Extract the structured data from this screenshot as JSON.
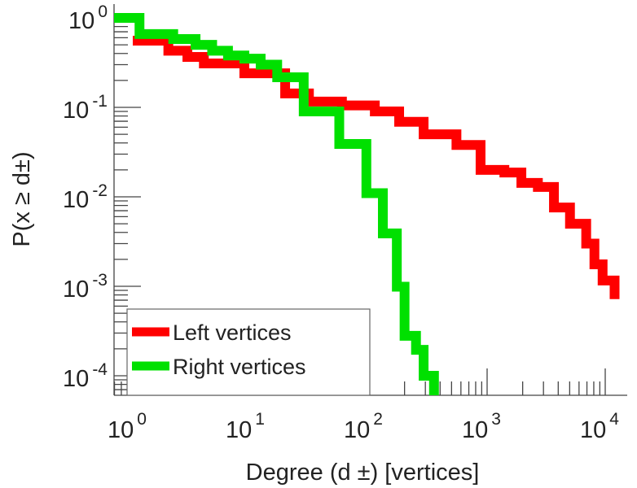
{
  "chart_data": {
    "type": "line",
    "title": "",
    "xlabel": "Degree (d ±) [vertices]",
    "ylabel": "P(x ≥ d±)",
    "xscale": "log",
    "yscale": "log",
    "xlim": [
      0.69,
      14000
    ],
    "ylim": [
      6e-05,
      1.4
    ],
    "xticks": [
      {
        "base": "10",
        "exp": "0"
      },
      {
        "base": "10",
        "exp": "1"
      },
      {
        "base": "10",
        "exp": "2"
      },
      {
        "base": "10",
        "exp": "3"
      },
      {
        "base": "10",
        "exp": "4"
      }
    ],
    "yticks": [
      {
        "base": "10",
        "exp": "0"
      },
      {
        "base": "10",
        "exp": "-1"
      },
      {
        "base": "10",
        "exp": "-2"
      },
      {
        "base": "10",
        "exp": "-3"
      },
      {
        "base": "10",
        "exp": "-4"
      }
    ],
    "grid": false,
    "legend_position": "bottom-left",
    "series": [
      {
        "name": "Left vertices",
        "color": "#ff0000",
        "x": [
          1,
          2,
          2.9,
          4,
          8.8,
          19.5,
          31,
          59,
          112,
          180,
          290,
          550,
          880,
          1400,
          1950,
          2690,
          3680,
          5030,
          6900,
          8100,
          9500,
          12000
        ],
        "y": [
          0.556,
          0.43,
          0.366,
          0.31,
          0.24,
          0.143,
          0.116,
          0.105,
          0.09,
          0.069,
          0.05,
          0.038,
          0.02,
          0.0187,
          0.0143,
          0.0129,
          0.0076,
          0.005,
          0.003,
          0.00176,
          0.00116,
          0.00085
        ]
      },
      {
        "name": "Right vertices",
        "color": "#00e000",
        "x": [
          0.69,
          1.14,
          2.2,
          3.4,
          4.7,
          6.4,
          8.8,
          12.1,
          16.7,
          28,
          56,
          95,
          131,
          172,
          200,
          250,
          290,
          355
        ],
        "y": [
          1,
          0.66,
          0.58,
          0.5,
          0.43,
          0.38,
          0.35,
          0.3,
          0.217,
          0.09,
          0.039,
          0.011,
          0.0039,
          0.00099,
          0.00028,
          0.000195,
          0.0001,
          6.75e-05
        ]
      }
    ]
  }
}
